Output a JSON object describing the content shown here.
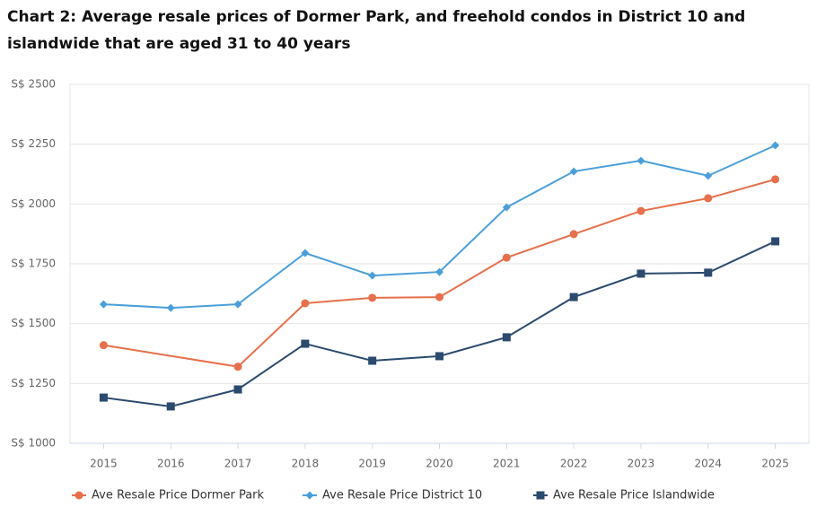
{
  "chart_data": {
    "type": "line",
    "title": "Chart 2: Average resale prices of Dormer Park, and freehold condos in District 10 and islandwide that are aged 31 to 40 years",
    "x": [
      2015,
      2016,
      2017,
      2018,
      2019,
      2020,
      2021,
      2022,
      2023,
      2024,
      2025
    ],
    "series": [
      {
        "name": "Ave Resale Price Dormer Park",
        "color": "#e5704b",
        "marker": "circle",
        "x": [
          2015,
          2017,
          2018,
          2019,
          2020,
          2021,
          2022,
          2023,
          2024,
          2025
        ],
        "values": [
          1410,
          1320,
          1585,
          1608,
          1611,
          1776,
          1874,
          1971,
          2024,
          2103
        ]
      },
      {
        "name": "Ave Resale Price District 10",
        "color": "#4a9fd8",
        "marker": "diamond",
        "values": [
          1581,
          1566,
          1581,
          1795,
          1701,
          1716,
          1986,
          2136,
          2181,
          2118,
          2245
        ]
      },
      {
        "name": "Ave Resale Price Islandwide",
        "color": "#2b4a6e",
        "marker": "square",
        "values": [
          1191,
          1154,
          1225,
          1416,
          1345,
          1364,
          1443,
          1611,
          1709,
          1713,
          1844
        ]
      }
    ],
    "xlim": [
      2014.5,
      2025.5
    ],
    "xticks": [
      2015,
      2016,
      2017,
      2018,
      2019,
      2020,
      2021,
      2022,
      2023,
      2024,
      2025
    ],
    "ylim": [
      1000,
      2500
    ],
    "yticks": [
      {
        "value": 1000,
        "label": "S$ 1000"
      },
      {
        "value": 1250,
        "label": "S$ 1250"
      },
      {
        "value": 1500,
        "label": "S$ 1500"
      },
      {
        "value": 1750,
        "label": "S$ 1750"
      },
      {
        "value": 2000,
        "label": "S$ 2000"
      },
      {
        "value": 2250,
        "label": "S$ 2250"
      },
      {
        "value": 2500,
        "label": "S$ 2500"
      }
    ],
    "grid": true
  }
}
